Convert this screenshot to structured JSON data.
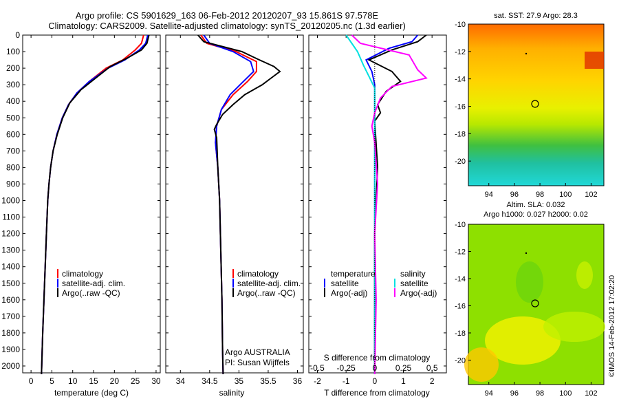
{
  "title_line1": "Argo profile: CS 5901629_163 06-Feb-2012 20120207_93 15.861S 97.578E",
  "title_line2": "Climatology: CARS2009. Satellite-adjusted climatology: synTS_20120205.nc (1.3d earlier)",
  "colors": {
    "climatology": "#ff0000",
    "satellite": "#0000ff",
    "argo": "#000000",
    "salinity_satellite": "#00e0e0",
    "salinity_argo": "#ff00ff"
  },
  "panels": {
    "temperature": {
      "xlabel": "temperature (deg C)",
      "xticks": [
        "0",
        "5",
        "10",
        "15",
        "20",
        "25",
        "30"
      ],
      "legend": [
        "climatology",
        "satellite-adj. clim.",
        "Argo(..raw -QC)"
      ]
    },
    "salinity": {
      "xlabel": "salinity",
      "xticks": [
        "34",
        "34.5",
        "35",
        "35.5",
        "36"
      ],
      "legend": [
        "climatology",
        "satellite-adj. clim.",
        "Argo(..raw -QC)"
      ],
      "note1": "Argo AUSTRALIA",
      "note2": "PI: Susan Wijffels"
    },
    "difference": {
      "xlabel": "T difference from climatology",
      "top_label": "S difference from climatology",
      "xticks_T": [
        "-2",
        "-1",
        "0",
        "1",
        "2"
      ],
      "xticks_S": [
        "-0.5",
        "-0.25",
        "0",
        "0.25",
        "0.5"
      ],
      "legend_temp_title": "temperature",
      "legend_temp": [
        "satellite",
        "Argo(-adj)"
      ],
      "legend_sal_title": "salinity",
      "legend_sal": [
        "satellite",
        "Argo(-adj)"
      ]
    }
  },
  "yticks": [
    "0",
    "100",
    "200",
    "300",
    "400",
    "500",
    "600",
    "700",
    "800",
    "900",
    "1000",
    "1100",
    "1200",
    "1300",
    "1400",
    "1500",
    "1600",
    "1700",
    "1800",
    "1900",
    "2000"
  ],
  "maps": {
    "sst": {
      "title": "sat. SST: 27.9 Argo: 28.3",
      "yticks": [
        "-10",
        "-12",
        "-14",
        "-16",
        "-18",
        "-20"
      ],
      "xticks": [
        "94",
        "96",
        "98",
        "100",
        "102"
      ]
    },
    "sla": {
      "title1": "Altim. SLA: 0.032",
      "title2": "Argo h1000: 0.027 h2000: 0.02",
      "yticks": [
        "-10",
        "-12",
        "-14",
        "-16",
        "-18",
        "-20"
      ],
      "xticks": [
        "94",
        "96",
        "98",
        "100",
        "102"
      ]
    }
  },
  "stamp": "©IMOS 14-Feb-2012 17:02:20",
  "chart_data": [
    {
      "type": "line",
      "xlabel": "temperature (deg C)",
      "ylabel": "",
      "xlim": [
        -2,
        31
      ],
      "ylim": [
        2080,
        0
      ],
      "series": [
        {
          "name": "climatology",
          "points": [
            [
              27,
              0
            ],
            [
              26.5,
              50
            ],
            [
              25,
              90
            ],
            [
              22,
              150
            ],
            [
              18,
              200
            ],
            [
              14,
              280
            ],
            [
              11,
              350
            ],
            [
              9,
              420
            ],
            [
              7.5,
              500
            ],
            [
              6.2,
              600
            ],
            [
              5.3,
              700
            ],
            [
              4.7,
              800
            ],
            [
              4.3,
              900
            ],
            [
              4,
              1000
            ],
            [
              3.7,
              1200
            ],
            [
              3.4,
              1400
            ],
            [
              3.1,
              1600
            ],
            [
              2.8,
              1800
            ],
            [
              2.5,
              2050
            ]
          ]
        },
        {
          "name": "satellite-adj. clim.",
          "points": [
            [
              28,
              0
            ],
            [
              27.5,
              50
            ],
            [
              26,
              90
            ],
            [
              22.5,
              150
            ],
            [
              18.5,
              200
            ],
            [
              14,
              280
            ],
            [
              11,
              350
            ],
            [
              9,
              420
            ],
            [
              7.5,
              500
            ],
            [
              6.2,
              600
            ],
            [
              5.3,
              700
            ],
            [
              4.7,
              800
            ],
            [
              4.3,
              900
            ],
            [
              4,
              1000
            ],
            [
              3.7,
              1200
            ],
            [
              3.4,
              1400
            ],
            [
              3.1,
              1600
            ],
            [
              2.8,
              1800
            ],
            [
              2.5,
              2050
            ]
          ]
        },
        {
          "name": "Argo(..raw -QC)",
          "points": [
            [
              28.3,
              0
            ],
            [
              27.8,
              50
            ],
            [
              26.5,
              90
            ],
            [
              23,
              140
            ],
            [
              19,
              190
            ],
            [
              15.5,
              260
            ],
            [
              12,
              330
            ],
            [
              9.3,
              410
            ],
            [
              7.6,
              500
            ],
            [
              6.3,
              600
            ],
            [
              5.3,
              700
            ],
            [
              4.7,
              800
            ],
            [
              4.3,
              900
            ],
            [
              4,
              1000
            ],
            [
              3.7,
              1200
            ],
            [
              3.4,
              1400
            ],
            [
              3.1,
              1600
            ],
            [
              2.8,
              1800
            ],
            [
              2.5,
              2050
            ]
          ]
        }
      ]
    },
    {
      "type": "line",
      "xlabel": "salinity",
      "ylabel": "",
      "xlim": [
        33.75,
        36.1
      ],
      "ylim": [
        2080,
        0
      ],
      "series": [
        {
          "name": "climatology",
          "points": [
            [
              34.35,
              0
            ],
            [
              34.45,
              50
            ],
            [
              34.95,
              100
            ],
            [
              35.3,
              160
            ],
            [
              35.3,
              220
            ],
            [
              35.15,
              280
            ],
            [
              34.9,
              360
            ],
            [
              34.7,
              450
            ],
            [
              34.62,
              550
            ],
            [
              34.6,
              650
            ],
            [
              34.64,
              800
            ],
            [
              34.67,
              1000
            ],
            [
              34.69,
              1300
            ],
            [
              34.71,
              1600
            ],
            [
              34.72,
              1900
            ],
            [
              34.73,
              2050
            ]
          ]
        },
        {
          "name": "satellite-adj. clim.",
          "points": [
            [
              34.4,
              0
            ],
            [
              34.5,
              50
            ],
            [
              34.9,
              100
            ],
            [
              35.2,
              160
            ],
            [
              35.25,
              220
            ],
            [
              35.05,
              290
            ],
            [
              34.85,
              360
            ],
            [
              34.7,
              450
            ],
            [
              34.62,
              550
            ],
            [
              34.6,
              650
            ],
            [
              34.64,
              800
            ],
            [
              34.67,
              1000
            ],
            [
              34.69,
              1300
            ],
            [
              34.71,
              1600
            ],
            [
              34.72,
              1900
            ],
            [
              34.73,
              2050
            ]
          ]
        },
        {
          "name": "Argo(..raw -QC)",
          "points": [
            [
              34.3,
              0
            ],
            [
              34.4,
              40
            ],
            [
              35.05,
              100
            ],
            [
              35.35,
              150
            ],
            [
              35.6,
              190
            ],
            [
              35.7,
              220
            ],
            [
              35.55,
              260
            ],
            [
              35.4,
              300
            ],
            [
              35.1,
              360
            ],
            [
              34.9,
              420
            ],
            [
              34.72,
              480
            ],
            [
              34.62,
              540
            ],
            [
              34.58,
              570
            ],
            [
              34.62,
              620
            ],
            [
              34.64,
              800
            ],
            [
              34.67,
              1000
            ],
            [
              34.69,
              1300
            ],
            [
              34.71,
              1600
            ],
            [
              34.72,
              1900
            ],
            [
              34.73,
              2050
            ]
          ]
        }
      ]
    },
    {
      "type": "line",
      "xlabel": "T difference from climatology",
      "ylabel": "",
      "xlim": [
        -2.3,
        2.5
      ],
      "ylim": [
        2080,
        0
      ],
      "series": [
        {
          "name": "satellite",
          "points": [
            [
              1.5,
              0
            ],
            [
              1.3,
              40
            ],
            [
              0.5,
              80
            ],
            [
              -0.3,
              150
            ],
            [
              -0.1,
              220
            ],
            [
              0,
              300
            ],
            [
              0,
              500
            ],
            [
              0,
              1000
            ],
            [
              0,
              2050
            ]
          ]
        },
        {
          "name": "Argo(-adj)",
          "points": [
            [
              1.8,
              0
            ],
            [
              1.5,
              40
            ],
            [
              0.6,
              90
            ],
            [
              -0.2,
              150
            ],
            [
              0.6,
              220
            ],
            [
              0.9,
              280
            ],
            [
              0.4,
              340
            ],
            [
              0.1,
              420
            ],
            [
              0.2,
              470
            ],
            [
              0,
              520
            ],
            [
              0.1,
              800
            ],
            [
              0,
              1200
            ],
            [
              0,
              1600
            ],
            [
              0,
              2050
            ]
          ]
        },
        {
          "name": "salinity satellite",
          "points": [
            [
              -1,
              0
            ],
            [
              -0.8,
              50
            ],
            [
              -0.6,
              100
            ],
            [
              -0.4,
              180
            ],
            [
              -0.2,
              250
            ],
            [
              0,
              320
            ],
            [
              0,
              500
            ],
            [
              0,
              1000
            ],
            [
              0,
              2050
            ]
          ]
        },
        {
          "name": "salinity Argo(-adj)",
          "points": [
            [
              -0.8,
              0
            ],
            [
              -0.5,
              50
            ],
            [
              1.2,
              120
            ],
            [
              1.5,
              210
            ],
            [
              1.8,
              260
            ],
            [
              0.6,
              310
            ],
            [
              0.2,
              380
            ],
            [
              0,
              470
            ],
            [
              -0.1,
              550
            ],
            [
              0,
              650
            ],
            [
              0.1,
              900
            ],
            [
              0,
              1200
            ],
            [
              0.05,
              1600
            ],
            [
              0,
              2050
            ]
          ]
        }
      ]
    }
  ]
}
